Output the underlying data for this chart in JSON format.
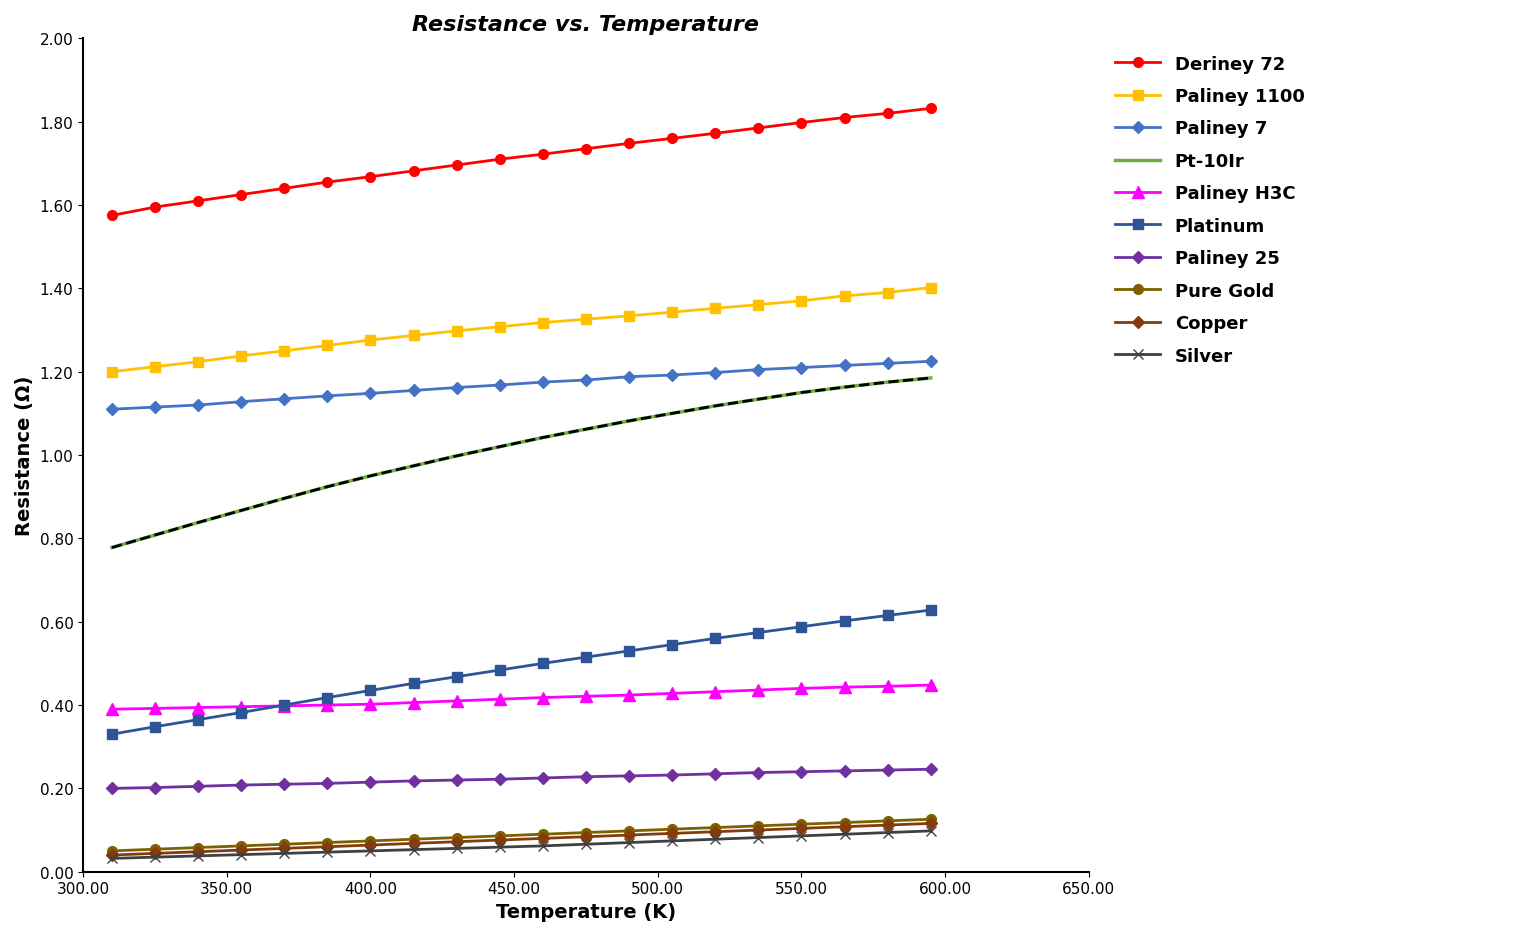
{
  "title": "Resistance vs. Temperature",
  "xlabel": "Temperature (K)",
  "ylabel": "Resistance (Ω)",
  "xlim": [
    300.0,
    650.0
  ],
  "ylim": [
    0.0,
    2.0
  ],
  "xticks": [
    300.0,
    350.0,
    400.0,
    450.0,
    500.0,
    550.0,
    600.0,
    650.0
  ],
  "yticks": [
    0.0,
    0.2,
    0.4,
    0.6,
    0.8,
    1.0,
    1.2,
    1.4,
    1.6,
    1.8,
    2.0
  ],
  "temperature": [
    310,
    325,
    340,
    355,
    370,
    385,
    400,
    415,
    430,
    445,
    460,
    475,
    490,
    505,
    520,
    535,
    550,
    565,
    580,
    595
  ],
  "series": [
    {
      "name": "Deriney 72",
      "color": "#FF0000",
      "marker": "o",
      "markerface": "#FF0000",
      "linestyle": "-",
      "linewidth": 2.0,
      "markersize": 7,
      "values": [
        1.575,
        1.595,
        1.61,
        1.625,
        1.64,
        1.655,
        1.668,
        1.682,
        1.696,
        1.71,
        1.722,
        1.735,
        1.748,
        1.76,
        1.772,
        1.785,
        1.798,
        1.81,
        1.82,
        1.832
      ]
    },
    {
      "name": "Paliney 1100",
      "color": "#FFC000",
      "marker": "s",
      "markerface": "#FFC000",
      "linestyle": "-",
      "linewidth": 2.0,
      "markersize": 7,
      "values": [
        1.2,
        1.212,
        1.224,
        1.238,
        1.25,
        1.263,
        1.276,
        1.287,
        1.298,
        1.308,
        1.318,
        1.326,
        1.334,
        1.343,
        1.352,
        1.361,
        1.37,
        1.382,
        1.39,
        1.402
      ]
    },
    {
      "name": "Paliney 7",
      "color": "#4472C4",
      "marker": "D",
      "markerface": "#4472C4",
      "linestyle": "-",
      "linewidth": 2.0,
      "markersize": 6,
      "values": [
        1.11,
        1.115,
        1.12,
        1.128,
        1.135,
        1.142,
        1.148,
        1.155,
        1.162,
        1.168,
        1.175,
        1.18,
        1.188,
        1.192,
        1.198,
        1.205,
        1.21,
        1.215,
        1.22,
        1.225
      ]
    },
    {
      "name": "Pt-10Ir",
      "green_color": "#70AD47",
      "black_color": "#000000",
      "linestyle_green": "-",
      "linestyle_black": "--",
      "linewidth": 2.0,
      "dualcolor": true,
      "values": [
        0.778,
        0.808,
        0.838,
        0.867,
        0.896,
        0.924,
        0.95,
        0.974,
        0.998,
        1.02,
        1.042,
        1.062,
        1.082,
        1.1,
        1.118,
        1.134,
        1.15,
        1.163,
        1.175,
        1.185
      ]
    },
    {
      "name": "Paliney H3C",
      "color": "#FF00FF",
      "marker": "^",
      "markerface": "#FF00FF",
      "linestyle": "-",
      "linewidth": 2.0,
      "markersize": 8,
      "values": [
        0.39,
        0.392,
        0.394,
        0.396,
        0.398,
        0.4,
        0.402,
        0.406,
        0.41,
        0.414,
        0.418,
        0.421,
        0.424,
        0.428,
        0.432,
        0.436,
        0.44,
        0.443,
        0.445,
        0.448
      ]
    },
    {
      "name": "Platinum",
      "color": "#2F5496",
      "marker": "s",
      "markerface": "#2F5496",
      "linestyle": "-",
      "linewidth": 2.0,
      "markersize": 7,
      "values": [
        0.33,
        0.348,
        0.365,
        0.382,
        0.4,
        0.418,
        0.435,
        0.452,
        0.468,
        0.484,
        0.5,
        0.515,
        0.53,
        0.545,
        0.56,
        0.574,
        0.588,
        0.602,
        0.615,
        0.628
      ]
    },
    {
      "name": "Paliney 25",
      "color": "#7030A0",
      "marker": "D",
      "markerface": "#7030A0",
      "linestyle": "-",
      "linewidth": 2.0,
      "markersize": 6,
      "values": [
        0.2,
        0.202,
        0.205,
        0.208,
        0.21,
        0.212,
        0.215,
        0.218,
        0.22,
        0.222,
        0.225,
        0.228,
        0.23,
        0.232,
        0.235,
        0.238,
        0.24,
        0.242,
        0.244,
        0.246
      ]
    },
    {
      "name": "Pure Gold",
      "color": "#7F6000",
      "marker": "o",
      "markerface": "#7F6000",
      "linestyle": "-",
      "linewidth": 2.0,
      "markersize": 7,
      "values": [
        0.05,
        0.054,
        0.058,
        0.062,
        0.066,
        0.07,
        0.074,
        0.078,
        0.082,
        0.086,
        0.09,
        0.094,
        0.098,
        0.102,
        0.106,
        0.11,
        0.114,
        0.118,
        0.122,
        0.126
      ]
    },
    {
      "name": "Copper",
      "color": "#843C0C",
      "marker": "D",
      "markerface": "#843C0C",
      "linestyle": "-",
      "linewidth": 2.0,
      "markersize": 6,
      "values": [
        0.04,
        0.044,
        0.048,
        0.052,
        0.056,
        0.06,
        0.064,
        0.068,
        0.072,
        0.076,
        0.08,
        0.084,
        0.088,
        0.092,
        0.096,
        0.1,
        0.104,
        0.108,
        0.112,
        0.116
      ]
    },
    {
      "name": "Silver",
      "color": "#404040",
      "marker": "x",
      "markerface": "#404040",
      "linestyle": "-",
      "linewidth": 2.0,
      "markersize": 7,
      "values": [
        0.032,
        0.035,
        0.038,
        0.041,
        0.044,
        0.047,
        0.05,
        0.053,
        0.056,
        0.059,
        0.062,
        0.066,
        0.07,
        0.074,
        0.078,
        0.082,
        0.086,
        0.09,
        0.094,
        0.098
      ]
    }
  ]
}
